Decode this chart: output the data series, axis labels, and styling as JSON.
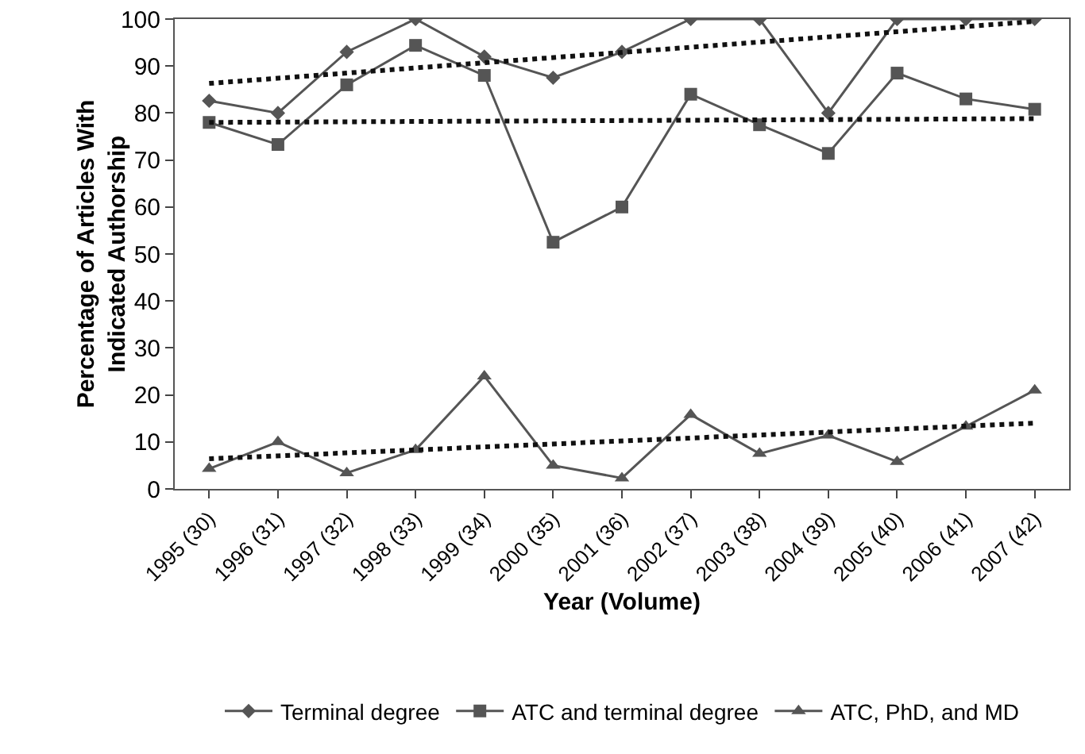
{
  "chart_data": {
    "type": "line",
    "xlabel": "Year (Volume)",
    "ylabel": "Percentage of Articles With\nIndicated Authorship",
    "categories": [
      "1995 (30)",
      "1996 (31)",
      "1997 (32)",
      "1998 (33)",
      "1999 (34)",
      "2000 (35)",
      "2001 (36)",
      "2002 (37)",
      "2003 (38)",
      "2004 (39)",
      "2005 (40)",
      "2006 (41)",
      "2007 (42)"
    ],
    "ylim": [
      0,
      100
    ],
    "yticks": [
      0,
      10,
      20,
      30,
      40,
      50,
      60,
      70,
      80,
      90,
      100
    ],
    "grid": false,
    "legend": "bottom",
    "series": [
      {
        "name": "Terminal degree",
        "color": "#555555",
        "marker": "diamond",
        "line_style": "solid",
        "values": [
          82.6,
          80,
          93,
          100,
          92,
          87.5,
          93,
          100,
          100,
          80,
          100,
          100,
          100
        ]
      },
      {
        "name": "ATC and terminal degree",
        "color": "#555555",
        "marker": "square",
        "line_style": "solid",
        "values": [
          78,
          73.3,
          86,
          94.4,
          88,
          52.5,
          60,
          84,
          77.5,
          71.4,
          88.5,
          83,
          80.8
        ]
      },
      {
        "name": "ATC, PhD, and MD",
        "color": "#555555",
        "marker": "triangle",
        "line_style": "solid",
        "values": [
          4.3,
          10,
          3.4,
          8.3,
          24,
          5,
          2.3,
          15.8,
          7.5,
          11.4,
          5.8,
          13.3,
          21
        ]
      },
      {
        "type": "line",
        "color": "#111111",
        "marker": "none",
        "line_style": "dotted",
        "x": [
          "1995 (30)",
          "2007 (42)"
        ],
        "values": [
          86.3,
          99.5
        ]
      },
      {
        "type": "line",
        "color": "#111111",
        "marker": "none",
        "line_style": "dotted",
        "x": [
          "1995 (30)",
          "2007 (42)"
        ],
        "values": [
          78,
          78.8
        ]
      },
      {
        "type": "line",
        "color": "#111111",
        "marker": "none",
        "line_style": "dotted",
        "x": [
          "1995 (30)",
          "2007 (42)"
        ],
        "values": [
          6.4,
          14
        ]
      }
    ]
  }
}
